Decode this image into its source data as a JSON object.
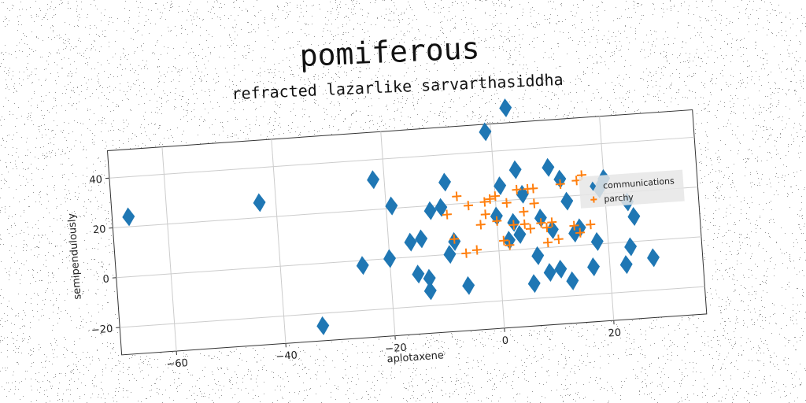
{
  "title": "pomiferous",
  "subtitle": "refracted lazarlike sarvarthasiddha",
  "chart_data": {
    "type": "scatter",
    "title": "refracted lazarlike sarvarthasiddha",
    "xlabel": "aplotaxene",
    "ylabel": "semipendulously",
    "xlim": [
      -70,
      37
    ],
    "ylim": [
      -31,
      51
    ],
    "xticks": [
      -60,
      -40,
      -20,
      0,
      20
    ],
    "yticks": [
      -20,
      0,
      20,
      40
    ],
    "grid": true,
    "legend_position": "right",
    "colors": {
      "communications": "#1f77b4",
      "parchy": "#ff7f0e"
    },
    "series": [
      {
        "name": "communications",
        "marker": "diamond",
        "x": [
          -67,
          -43,
          -33,
          -25,
          -22,
          -20,
          -19,
          -16,
          -15,
          -14,
          -13,
          -13,
          -12,
          -10,
          -9,
          -9,
          -8,
          -6,
          -1,
          0,
          1,
          2,
          3,
          3,
          4,
          4,
          5,
          6,
          7,
          8,
          9,
          10,
          10,
          11,
          12,
          13,
          13,
          14,
          15,
          17,
          18,
          19,
          20,
          23,
          24,
          24,
          25,
          28
        ],
        "y": [
          24,
          26,
          -25,
          -2,
          32,
          0,
          21,
          6,
          -7,
          7,
          -14,
          -9,
          18,
          19,
          29,
          0,
          5,
          -13,
          48,
          14,
          26,
          4,
          57,
          11,
          32,
          6,
          22,
          -14,
          -3,
          12,
          -10,
          7,
          32,
          -9,
          27,
          -14,
          18,
          5,
          7,
          -9,
          1,
          22,
          26,
          -9,
          -2,
          16,
          10,
          -7
        ]
      },
      {
        "name": "parchy",
        "marker": "plus",
        "x": [
          -9,
          -8,
          -7,
          -6,
          -5,
          -4,
          -3,
          -2,
          -2,
          -1,
          0,
          0,
          1,
          2,
          2,
          3,
          4,
          5,
          5,
          6,
          6,
          7,
          7,
          8,
          9,
          9,
          10,
          11,
          12,
          14,
          15,
          15,
          16,
          17
        ],
        "y": [
          16,
          6,
          23,
          0,
          19,
          1,
          11,
          20,
          15,
          21,
          22,
          12,
          4,
          2,
          19,
          10,
          24,
          15,
          10,
          8,
          24,
          18,
          24,
          10,
          8,
          2,
          10,
          3,
          25,
          8,
          5,
          26,
          28,
          8
        ]
      }
    ]
  }
}
